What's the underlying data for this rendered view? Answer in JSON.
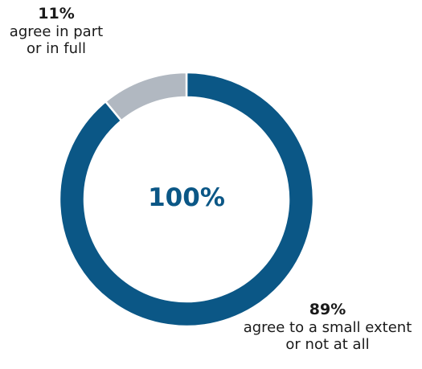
{
  "chart_data": {
    "type": "pie",
    "donut": true,
    "center_label": "100%",
    "slices": [
      {
        "value": 89,
        "label_pct": "89%",
        "label_lines": [
          "agree to a small extent",
          "or not at all"
        ],
        "color": "#0b5786"
      },
      {
        "value": 11,
        "label_pct": "11%",
        "label_lines": [
          "agree in part",
          "or in full"
        ],
        "color": "#b1b8c1"
      }
    ],
    "title": "",
    "legend": "none"
  },
  "colors": {
    "accent": "#0b5786",
    "secondary": "#b1b8c1",
    "text": "#1a1a1a"
  }
}
